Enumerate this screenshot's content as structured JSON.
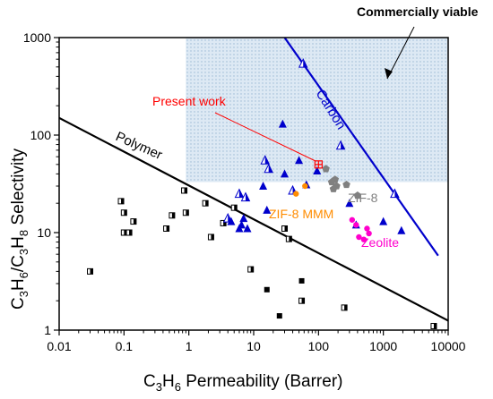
{
  "chart_data": {
    "type": "scatter",
    "xscale": "log",
    "yscale": "log",
    "xlim": [
      0.01,
      10000
    ],
    "ylim": [
      1,
      1000
    ],
    "xticks": [
      "0.01",
      "0.1",
      "1",
      "10",
      "100",
      "1000",
      "10000"
    ],
    "yticks": [
      "1",
      "10",
      "100",
      "1000"
    ],
    "xlabel": {
      "parts": [
        "C",
        "3",
        "H",
        "6",
        " Permeability (Barrer)"
      ]
    },
    "ylabel": {
      "parts": [
        "C",
        "3",
        "H",
        "6",
        "/C",
        "3",
        "H",
        "8",
        " Selectivity"
      ]
    },
    "annotations": {
      "commercially_viable": "Commercially viable",
      "present_work": "Present work",
      "carbon": "Carbon",
      "polymer": "Polymer",
      "zif8": "ZIF-8",
      "zif8_mmm": "ZIF-8 MMM",
      "zeolite": "Zeolite"
    },
    "colors": {
      "carbon_line": "#0000cc",
      "polymer_line": "#000000",
      "present_work": "#ff0000",
      "zif8": "#808080",
      "zif8_mmm": "#ff8c00",
      "zeolite": "#ff00cc",
      "triangles": "#0000cc",
      "region": "#c6d9ea"
    },
    "region": {
      "x": [
        0.9,
        10000
      ],
      "y": [
        33,
        1000
      ]
    },
    "lines": [
      {
        "name": "Polymer",
        "points": [
          [
            0.01,
            150
          ],
          [
            10000,
            1.25
          ]
        ]
      },
      {
        "name": "Carbon",
        "points": [
          [
            30,
            1000
          ],
          [
            7000,
            5.8
          ]
        ]
      }
    ],
    "series": [
      {
        "name": "Polymer",
        "marker": "half-square",
        "points": [
          [
            0.03,
            4
          ],
          [
            0.09,
            21
          ],
          [
            0.1,
            16
          ],
          [
            0.1,
            10
          ],
          [
            0.12,
            10
          ],
          [
            0.14,
            13
          ],
          [
            0.45,
            11
          ],
          [
            0.55,
            15
          ],
          [
            0.85,
            27
          ],
          [
            0.9,
            16
          ],
          [
            1.8,
            20
          ],
          [
            2.2,
            9
          ],
          [
            3.4,
            12.5
          ],
          [
            5,
            18
          ],
          [
            9,
            4.2
          ],
          [
            30,
            11
          ],
          [
            35,
            8.6
          ],
          [
            55,
            2
          ],
          [
            250,
            1.7
          ],
          [
            6000,
            1.1
          ]
        ]
      },
      {
        "name": "Polymer",
        "marker": "square",
        "points": [
          [
            16,
            2.6
          ],
          [
            25,
            1.4
          ],
          [
            55,
            3.2
          ]
        ]
      },
      {
        "name": "Carbon",
        "marker": "half-triangle",
        "points": [
          [
            4,
            14
          ],
          [
            6,
            25
          ],
          [
            7.5,
            23
          ],
          [
            15,
            55
          ],
          [
            17,
            45
          ],
          [
            40,
            27
          ],
          [
            58,
            540
          ],
          [
            220,
            78
          ],
          [
            1500,
            25
          ]
        ]
      },
      {
        "name": "Carbon",
        "marker": "triangle",
        "points": [
          [
            4.5,
            13
          ],
          [
            6,
            11
          ],
          [
            6.5,
            12
          ],
          [
            7,
            14
          ],
          [
            8,
            11
          ],
          [
            14,
            30
          ],
          [
            16,
            17
          ],
          [
            28,
            130
          ],
          [
            30,
            40
          ],
          [
            50,
            55
          ],
          [
            65,
            31
          ],
          [
            95,
            43
          ],
          [
            300,
            20
          ],
          [
            380,
            12
          ],
          [
            1000,
            13
          ],
          [
            1900,
            10.5
          ]
        ]
      },
      {
        "name": "ZIF-8",
        "marker": "pentagon",
        "points": [
          [
            130,
            45
          ],
          [
            160,
            33
          ],
          [
            170,
            28
          ],
          [
            180,
            35
          ],
          [
            190,
            30
          ],
          [
            270,
            31
          ],
          [
            400,
            24
          ]
        ]
      },
      {
        "name": "ZIF-8 MMM",
        "marker": "circle",
        "points": [
          [
            45,
            25
          ],
          [
            62,
            30
          ]
        ]
      },
      {
        "name": "Zeolite",
        "marker": "circle",
        "points": [
          [
            330,
            13.5
          ],
          [
            380,
            12
          ],
          [
            420,
            9
          ],
          [
            500,
            8.5
          ],
          [
            560,
            11
          ],
          [
            600,
            9.8
          ]
        ]
      },
      {
        "name": "Present work",
        "marker": "star",
        "points": [
          [
            100,
            50
          ]
        ]
      }
    ]
  }
}
